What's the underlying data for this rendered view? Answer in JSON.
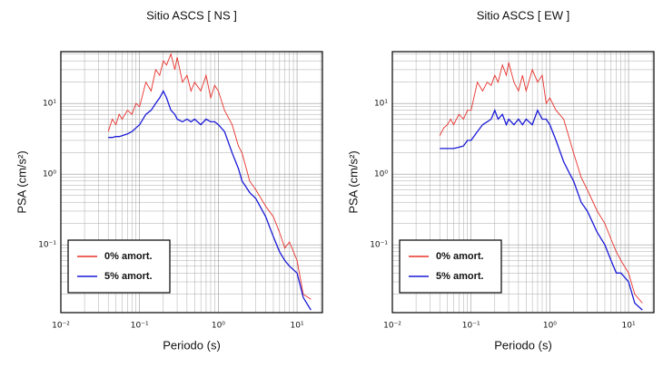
{
  "chart_data": [
    {
      "type": "line",
      "title": "Sitio ASCS [ NS ]",
      "x_label": "Periodo (s)",
      "y_label": "PSA (cm/s²)",
      "log_x": true,
      "log_y": true,
      "grid": true,
      "legend": "lower left",
      "xlim": [
        0.01,
        21
      ],
      "ylim": [
        0.011,
        54
      ],
      "xticks": [
        {
          "value": 0.01,
          "label": "10⁻²"
        },
        {
          "value": 0.1,
          "label": "10⁻¹"
        },
        {
          "value": 1,
          "label": "10⁰"
        },
        {
          "value": 10,
          "label": "10¹"
        }
      ],
      "yticks": [
        {
          "value": 0.1,
          "label": "10⁻¹"
        },
        {
          "value": 1,
          "label": "10⁰"
        },
        {
          "value": 10,
          "label": "10¹"
        }
      ],
      "x": [
        0.04,
        0.045,
        0.05,
        0.055,
        0.06,
        0.07,
        0.08,
        0.09,
        0.1,
        0.12,
        0.14,
        0.16,
        0.18,
        0.2,
        0.22,
        0.25,
        0.28,
        0.3,
        0.35,
        0.4,
        0.45,
        0.5,
        0.6,
        0.7,
        0.8,
        0.9,
        1.0,
        1.2,
        1.5,
        1.8,
        2,
        2.5,
        3,
        4,
        5,
        6,
        7,
        8,
        10,
        12,
        15
      ],
      "series": [
        {
          "name": "0% amort.",
          "color": "#e8302a",
          "values": [
            4,
            6,
            5,
            7,
            6,
            8,
            7,
            10,
            9,
            20,
            15,
            30,
            25,
            40,
            35,
            50,
            30,
            45,
            20,
            25,
            15,
            20,
            15,
            25,
            12,
            18,
            15,
            8,
            5,
            2.5,
            2.0,
            0.8,
            0.6,
            0.35,
            0.25,
            0.15,
            0.09,
            0.11,
            0.06,
            0.02,
            0.017
          ]
        },
        {
          "name": "5% amort.",
          "color": "#1a1ad8",
          "values": [
            3.3,
            3.3,
            3.4,
            3.4,
            3.5,
            3.7,
            4,
            4.5,
            5,
            7,
            8,
            10,
            12,
            15,
            12,
            8,
            7,
            6,
            5.5,
            6,
            5.5,
            6,
            5,
            6,
            5.5,
            5.5,
            5,
            4,
            2,
            1.2,
            0.8,
            0.55,
            0.45,
            0.25,
            0.13,
            0.08,
            0.06,
            0.05,
            0.04,
            0.018,
            0.012
          ]
        }
      ]
    },
    {
      "type": "line",
      "title": "Sitio ASCS [ EW ]",
      "x_label": "Periodo (s)",
      "y_label": "PSA (cm/s²)",
      "log_x": true,
      "log_y": true,
      "grid": true,
      "legend": "lower left",
      "xlim": [
        0.01,
        21
      ],
      "ylim": [
        0.011,
        54
      ],
      "xticks": [
        {
          "value": 0.01,
          "label": "10⁻²"
        },
        {
          "value": 0.1,
          "label": "10⁻¹"
        },
        {
          "value": 1,
          "label": "10⁰"
        },
        {
          "value": 10,
          "label": "10¹"
        }
      ],
      "yticks": [
        {
          "value": 0.1,
          "label": "10⁻¹"
        },
        {
          "value": 1,
          "label": "10⁰"
        },
        {
          "value": 10,
          "label": "10¹"
        }
      ],
      "x": [
        0.04,
        0.045,
        0.05,
        0.055,
        0.06,
        0.07,
        0.08,
        0.09,
        0.1,
        0.12,
        0.14,
        0.16,
        0.18,
        0.2,
        0.22,
        0.25,
        0.28,
        0.3,
        0.35,
        0.4,
        0.45,
        0.5,
        0.6,
        0.7,
        0.8,
        0.9,
        1.0,
        1.2,
        1.5,
        1.8,
        2,
        2.5,
        3,
        4,
        5,
        6,
        7,
        8,
        10,
        12,
        15
      ],
      "series": [
        {
          "name": "0% amort.",
          "color": "#e8302a",
          "values": [
            3.5,
            4.5,
            5,
            6,
            5,
            7,
            6,
            8,
            8,
            20,
            15,
            20,
            18,
            25,
            20,
            35,
            25,
            38,
            20,
            15,
            25,
            15,
            30,
            20,
            25,
            10,
            12,
            8,
            6,
            3,
            2,
            0.9,
            0.6,
            0.3,
            0.2,
            0.12,
            0.08,
            0.06,
            0.04,
            0.02,
            0.015
          ]
        },
        {
          "name": "5% amort.",
          "color": "#1a1ad8",
          "values": [
            2.3,
            2.3,
            2.3,
            2.3,
            2.3,
            2.4,
            2.5,
            3,
            3,
            4,
            5,
            5.5,
            6,
            8,
            6,
            7,
            5,
            6,
            5,
            6,
            5,
            6,
            5,
            8,
            6,
            6,
            5,
            3,
            1.5,
            1,
            0.8,
            0.4,
            0.3,
            0.15,
            0.1,
            0.06,
            0.04,
            0.04,
            0.03,
            0.015,
            0.012
          ]
        }
      ]
    }
  ]
}
